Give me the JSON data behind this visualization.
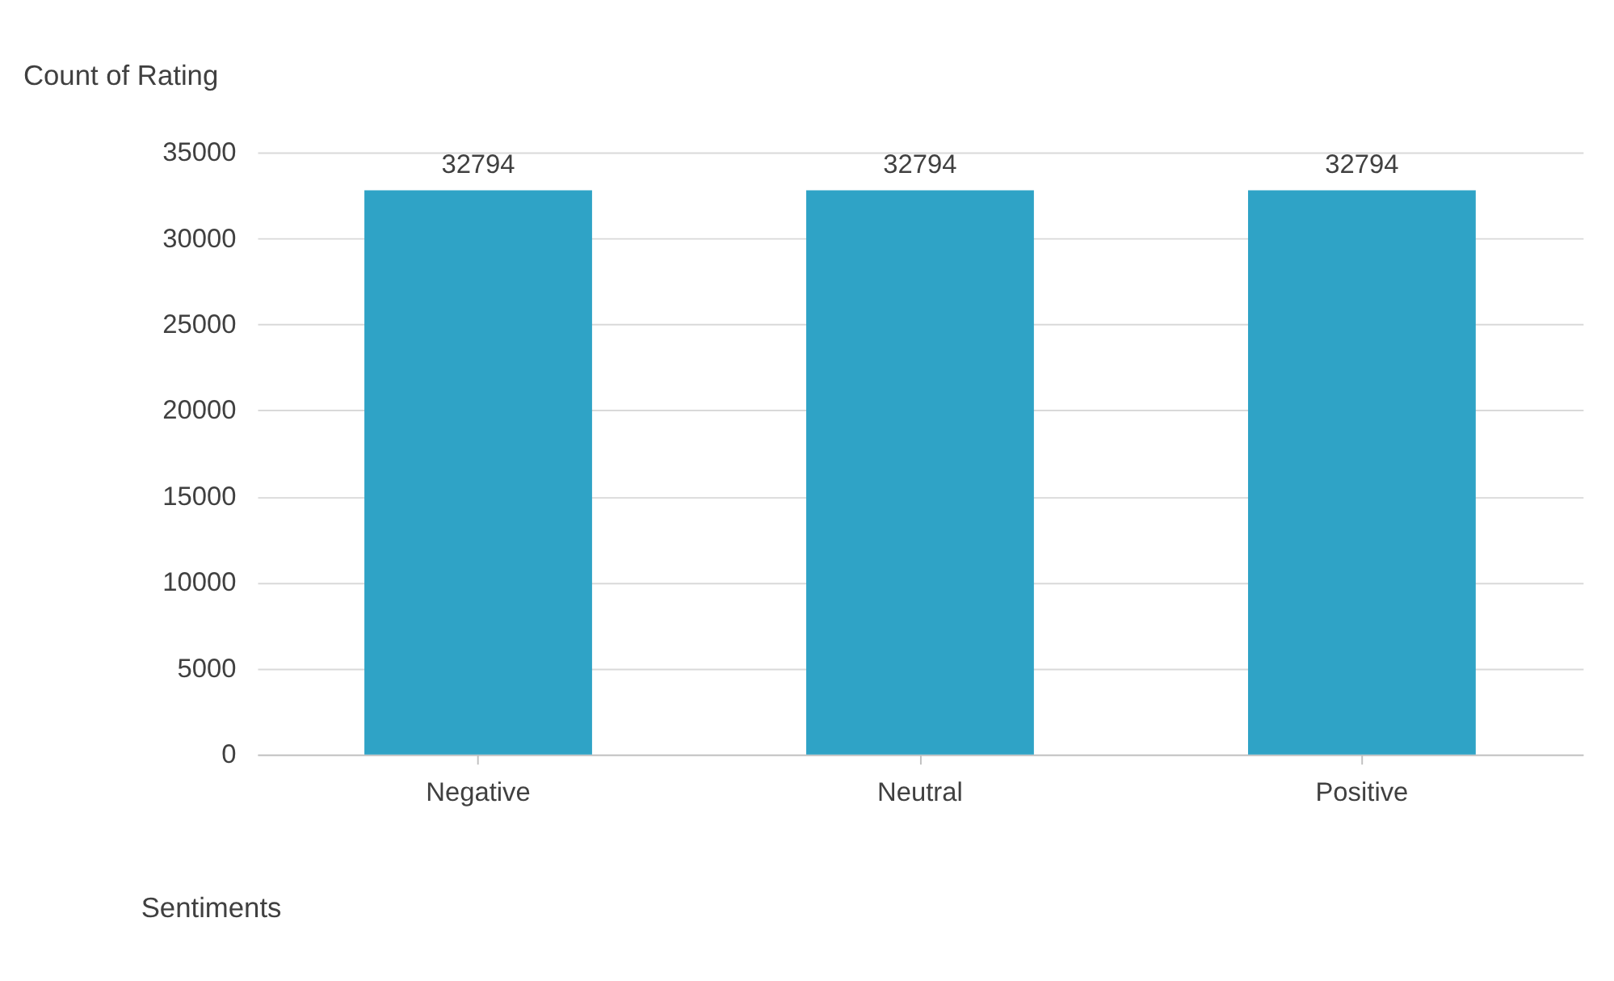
{
  "chart_data": {
    "type": "bar",
    "title": "Count of Rating",
    "xlabel": "Sentiments",
    "categories": [
      "Negative",
      "Neutral",
      "Positive"
    ],
    "values": [
      32794,
      32794,
      32794
    ],
    "color": "#2fa3c6",
    "ylim": [
      0,
      35000
    ],
    "yticks": [
      0,
      5000,
      10000,
      15000,
      20000,
      25000,
      30000,
      35000
    ],
    "grid": "y",
    "data_labels": true
  }
}
